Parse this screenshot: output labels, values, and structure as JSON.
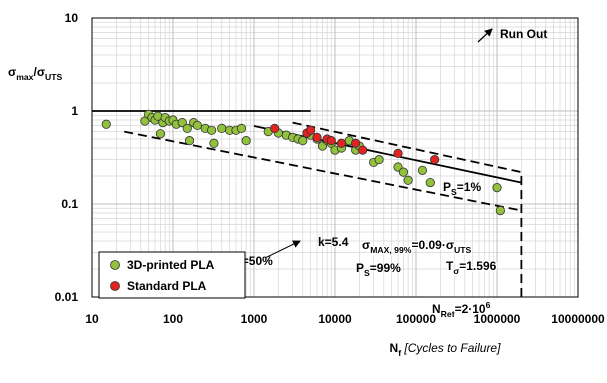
{
  "chart_data": {
    "type": "scatter",
    "x_scale": "log",
    "y_scale": "log",
    "grid": true,
    "xlim": [
      10,
      10000000
    ],
    "ylim": [
      0.01,
      10
    ],
    "xticks": [
      10,
      100,
      1000,
      10000,
      100000,
      1000000,
      10000000
    ],
    "yticks": [
      0.01,
      0.1,
      1,
      10
    ],
    "y_label": [
      {
        "text": "σ"
      },
      {
        "sub": "max"
      },
      {
        "text": "/σ"
      },
      {
        "sub": "UTS"
      }
    ],
    "x_label": [
      {
        "text": "N"
      },
      {
        "sub": "f"
      },
      {
        "italic": " [Cycles to Failure]"
      }
    ],
    "legend": "lower left",
    "series": [
      {
        "name": "3D-printed PLA",
        "color": "#92c13e",
        "x": [
          15,
          45,
          50,
          55,
          60,
          65,
          70,
          75,
          80,
          90,
          100,
          110,
          130,
          150,
          160,
          180,
          200,
          250,
          300,
          320,
          400,
          500,
          600,
          700,
          800,
          1500,
          2000,
          2500,
          3000,
          3500,
          4000,
          5000,
          6000,
          7000,
          8000,
          9000,
          10000,
          12000,
          15000,
          18000,
          20000,
          30000,
          35000,
          60000,
          70000,
          80000,
          120000,
          150000,
          1000000,
          1100000
        ],
        "values": [
          0.72,
          0.78,
          0.92,
          0.85,
          0.8,
          0.88,
          0.57,
          0.75,
          0.85,
          0.78,
          0.8,
          0.72,
          0.75,
          0.65,
          0.48,
          0.75,
          0.7,
          0.65,
          0.62,
          0.45,
          0.65,
          0.62,
          0.62,
          0.65,
          0.48,
          0.6,
          0.58,
          0.55,
          0.52,
          0.5,
          0.48,
          0.55,
          0.5,
          0.42,
          0.48,
          0.45,
          0.38,
          0.4,
          0.48,
          0.38,
          0.42,
          0.28,
          0.3,
          0.25,
          0.22,
          0.18,
          0.23,
          0.17,
          0.15,
          0.085
        ]
      },
      {
        "name": "Standard PLA",
        "color": "#e32222",
        "x": [
          1800,
          4500,
          5000,
          6000,
          8000,
          9000,
          12000,
          18000,
          22000,
          60000,
          170000
        ],
        "values": [
          0.65,
          0.58,
          0.62,
          0.52,
          0.5,
          0.48,
          0.45,
          0.45,
          0.38,
          0.35,
          0.3
        ]
      }
    ],
    "ref_lines": [
      {
        "style": "solid",
        "x": [
          10,
          5000
        ],
        "y": [
          1,
          1
        ]
      },
      {
        "style": "solid",
        "x": [
          1000,
          2000000
        ],
        "y": [
          0.69,
          0.17
        ]
      },
      {
        "style": "dashed",
        "x": [
          3000,
          2000000
        ],
        "y": [
          0.75,
          0.22
        ]
      },
      {
        "style": "dashed",
        "x": [
          25,
          2000000
        ],
        "y": [
          0.6,
          0.085
        ]
      },
      {
        "style": "dashed",
        "x": [
          2000000,
          2000000
        ],
        "y": [
          0.01,
          0.22
        ]
      }
    ],
    "annotations": [
      [
        {
          "text": "P"
        },
        {
          "sub": "S"
        },
        {
          "text": "=1%"
        }
      ],
      [
        {
          "text": "P"
        },
        {
          "sub": "S"
        },
        {
          "text": "=50%"
        }
      ],
      [
        {
          "text": "k=5.4"
        }
      ],
      [
        {
          "text": "P"
        },
        {
          "sub": "S"
        },
        {
          "text": "=99%"
        }
      ],
      [
        {
          "text": "σ"
        },
        {
          "sub": "MAX, 99%"
        },
        {
          "text": "=0.09·σ"
        },
        {
          "sub": "UTS"
        }
      ],
      [
        {
          "text": "T"
        },
        {
          "sub": "σ"
        },
        {
          "text": "=1.596"
        }
      ],
      [
        {
          "text": "N"
        },
        {
          "sub": "Ref"
        },
        {
          "text": "=2·10"
        },
        {
          "sup": "6"
        }
      ],
      [
        {
          "text": "Run Out"
        }
      ]
    ]
  }
}
